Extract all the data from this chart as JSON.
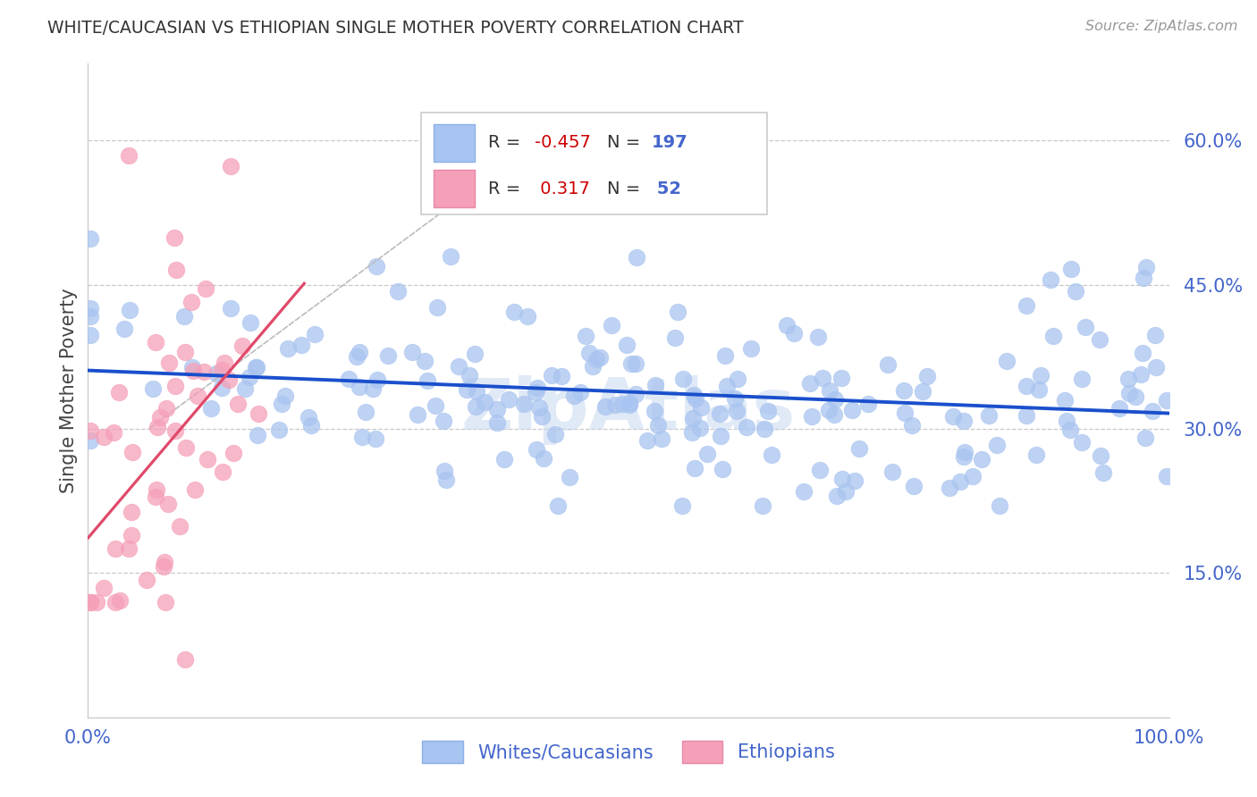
{
  "title": "WHITE/CAUCASIAN VS ETHIOPIAN SINGLE MOTHER POVERTY CORRELATION CHART",
  "source": "Source: ZipAtlas.com",
  "ylabel": "Single Mother Poverty",
  "ytick_labels": [
    "15.0%",
    "30.0%",
    "45.0%",
    "60.0%"
  ],
  "ytick_values": [
    0.15,
    0.3,
    0.45,
    0.6
  ],
  "xlim": [
    0.0,
    1.0
  ],
  "ylim": [
    0.0,
    0.68
  ],
  "blue_R": -0.457,
  "blue_N": 197,
  "pink_R": 0.317,
  "pink_N": 52,
  "blue_scatter_color": "#a8c4f0",
  "pink_scatter_color": "#f5a0b8",
  "trend_blue_color": "#1a4fcc",
  "trend_pink_color": "#e0496a",
  "legend_label_blue": "Whites/Caucasians",
  "legend_label_pink": "Ethiopians",
  "background_color": "#ffffff",
  "grid_color": "#bbbbbb",
  "watermark": "ZipAtlas",
  "title_color": "#333333",
  "tick_color": "#4466cc",
  "source_color": "#999999",
  "legend_text_color": "#4466cc",
  "legend_R_color": "#cc0000",
  "legend_border_color": "#cccccc"
}
